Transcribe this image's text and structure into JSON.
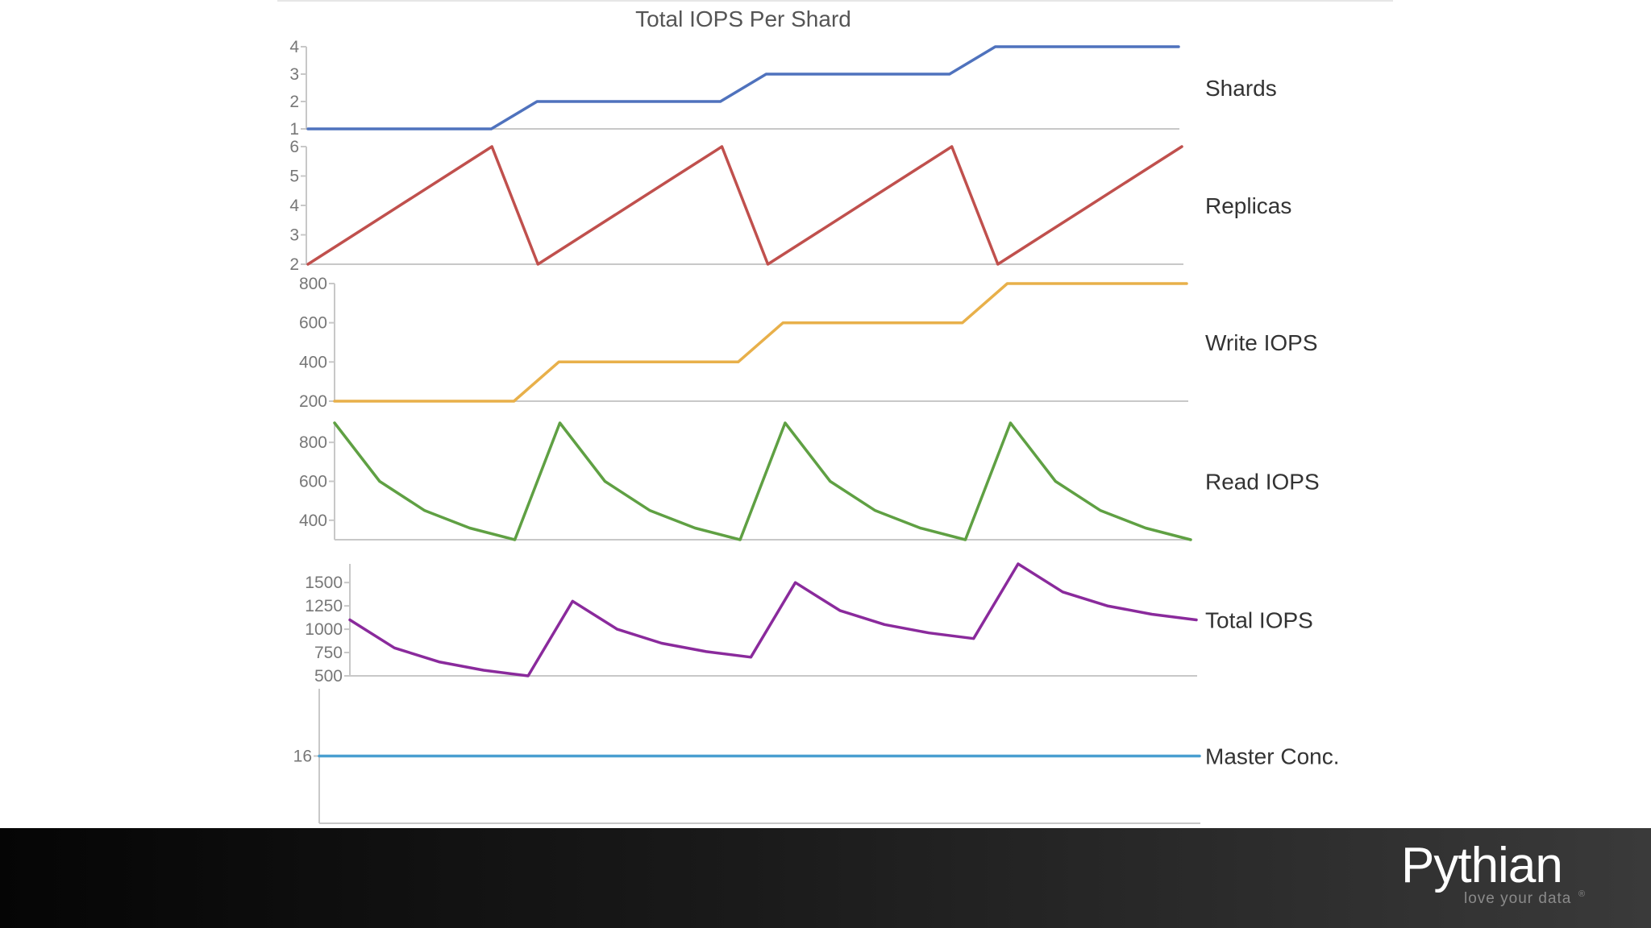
{
  "brand": {
    "name": "Pythian",
    "tagline": "love your data",
    "registered_mark": "®"
  },
  "chart_data": {
    "type": "line",
    "title": "Total IOPS Per Shard",
    "xlabel": "",
    "x": [
      0,
      1,
      2,
      3,
      4,
      5,
      6,
      7,
      8,
      9,
      10,
      11,
      12,
      13,
      14,
      15,
      16,
      17,
      18,
      19
    ],
    "panels": [
      {
        "name": "Shards",
        "color": "#4f72bd",
        "ylim": [
          1,
          4
        ],
        "yticks": [
          1,
          2,
          3,
          4
        ],
        "values": [
          1,
          1,
          1,
          1,
          1,
          2,
          2,
          2,
          2,
          2,
          3,
          3,
          3,
          3,
          3,
          4,
          4,
          4,
          4,
          4
        ]
      },
      {
        "name": "Replicas",
        "color": "#c0504d",
        "ylim": [
          2,
          6
        ],
        "yticks": [
          2,
          3,
          4,
          5,
          6
        ],
        "values": [
          2,
          3,
          4,
          5,
          6,
          2,
          3,
          4,
          5,
          6,
          2,
          3,
          4,
          5,
          6,
          2,
          3,
          4,
          5,
          6
        ]
      },
      {
        "name": "Write IOPS",
        "color": "#e8b04a",
        "ylim": [
          200,
          800
        ],
        "yticks": [
          200,
          400,
          600,
          800
        ],
        "values": [
          200,
          200,
          200,
          200,
          200,
          400,
          400,
          400,
          400,
          400,
          600,
          600,
          600,
          600,
          600,
          800,
          800,
          800,
          800,
          800
        ]
      },
      {
        "name": "Read IOPS",
        "color": "#5fa043",
        "ylim": [
          300,
          900
        ],
        "yticks": [
          400,
          600,
          800
        ],
        "values": [
          900,
          600,
          450,
          360,
          300,
          900,
          600,
          450,
          360,
          300,
          900,
          600,
          450,
          360,
          300,
          900,
          600,
          450,
          360,
          300
        ]
      },
      {
        "name": "Total IOPS",
        "color": "#8a2a9c",
        "ylim": [
          500,
          1700
        ],
        "yticks": [
          500,
          750,
          1000,
          1250,
          1500
        ],
        "values": [
          1100,
          800,
          650,
          560,
          500,
          1300,
          1000,
          850,
          760,
          700,
          1500,
          1200,
          1050,
          960,
          900,
          1700,
          1400,
          1250,
          1160,
          1100
        ]
      },
      {
        "name": "Master Conc.",
        "color": "#4a9fd0",
        "ylim": [
          0,
          32
        ],
        "yticks": [
          16
        ],
        "values": [
          16,
          16,
          16,
          16,
          16,
          16,
          16,
          16,
          16,
          16,
          16,
          16,
          16,
          16,
          16,
          16,
          16,
          16,
          16,
          16
        ]
      }
    ]
  }
}
